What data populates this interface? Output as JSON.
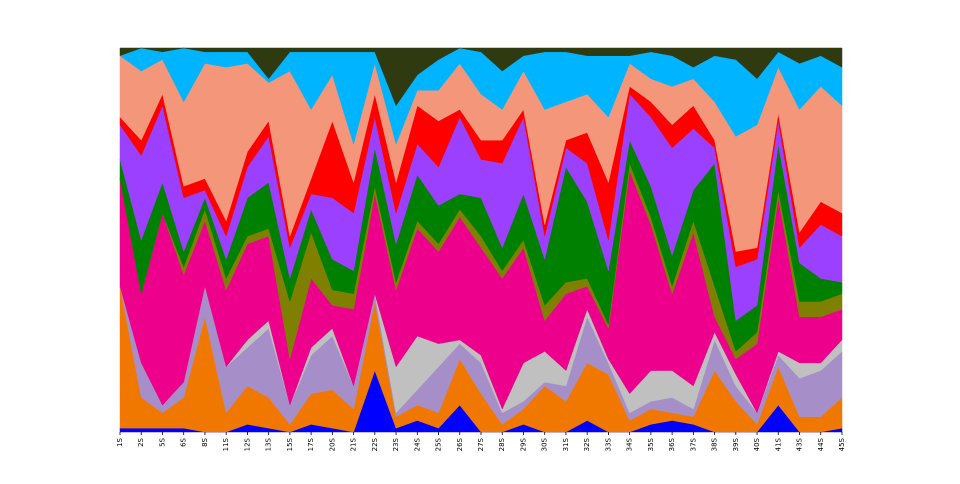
{
  "chart_data": {
    "type": "stacked_area",
    "categories": [
      "1S",
      "2S",
      "5S",
      "6S",
      "8S",
      "11S",
      "12S",
      "13S",
      "15S",
      "17S",
      "20S",
      "21S",
      "22S",
      "23S",
      "24S",
      "25S",
      "26S",
      "27S",
      "28S",
      "29S",
      "30S",
      "31S",
      "32S",
      "33S",
      "34S",
      "35S",
      "36S",
      "37S",
      "38S",
      "39S",
      "40S",
      "41S",
      "43S",
      "44S",
      "45S"
    ],
    "ylim": [
      0,
      100
    ],
    "series": [
      {
        "color": "#0000ff",
        "values": [
          1,
          1,
          1,
          1,
          0,
          0,
          2,
          1,
          0,
          2,
          1,
          0,
          16,
          1,
          3,
          1,
          7,
          0,
          0,
          2,
          0,
          0,
          3,
          0,
          0,
          2,
          3,
          2,
          0,
          0,
          0,
          7,
          0,
          0,
          1
        ]
      },
      {
        "color": "#f07800",
        "values": [
          37,
          8,
          4,
          8,
          30,
          5,
          10,
          8,
          2,
          8,
          10,
          6,
          18,
          3,
          4,
          4,
          12,
          10,
          2,
          4,
          12,
          8,
          15,
          15,
          3,
          4,
          2,
          2,
          16,
          8,
          2,
          10,
          4,
          4,
          8
        ]
      },
      {
        "color": "#a68fc8",
        "values": [
          0,
          9,
          2,
          4,
          8,
          12,
          10,
          18,
          5,
          10,
          14,
          6,
          2,
          1,
          4,
          12,
          4,
          8,
          3,
          2,
          1,
          4,
          12,
          3,
          2,
          2,
          4,
          2,
          8,
          4,
          3,
          3,
          10,
          12,
          12
        ]
      },
      {
        "color": "#c0c0c0",
        "values": [
          0,
          0,
          0,
          0,
          0,
          0,
          2,
          2,
          0,
          2,
          2,
          0,
          0,
          12,
          14,
          6,
          1,
          2,
          1,
          10,
          8,
          4,
          2,
          1,
          5,
          8,
          7,
          6,
          2,
          3,
          0,
          1,
          4,
          2,
          3
        ]
      },
      {
        "color": "#ec008c",
        "values": [
          28,
          18,
          50,
          28,
          17,
          20,
          25,
          22,
          12,
          18,
          6,
          20,
          26,
          20,
          28,
          24,
          32,
          28,
          34,
          30,
          8,
          20,
          6,
          8,
          58,
          38,
          20,
          40,
          4,
          4,
          18,
          40,
          12,
          12,
          8
        ]
      },
      {
        "color": "#808000",
        "values": [
          0,
          0,
          0,
          2,
          3,
          3,
          2,
          2,
          15,
          12,
          4,
          4,
          2,
          2,
          2,
          2,
          2,
          3,
          2,
          2,
          4,
          3,
          2,
          1,
          2,
          2,
          2,
          3,
          8,
          2,
          3,
          2,
          4,
          4,
          4
        ]
      },
      {
        "color": "#008000",
        "values": [
          5,
          14,
          8,
          4,
          3,
          5,
          10,
          12,
          6,
          6,
          8,
          6,
          10,
          10,
          12,
          10,
          4,
          10,
          6,
          12,
          12,
          30,
          20,
          14,
          6,
          8,
          8,
          8,
          32,
          8,
          7,
          12,
          10,
          6,
          3
        ]
      },
      {
        "color": "#9b40ff",
        "values": [
          9,
          22,
          20,
          14,
          2,
          6,
          8,
          12,
          8,
          4,
          16,
          15,
          8,
          8,
          8,
          10,
          20,
          10,
          22,
          20,
          6,
          5,
          10,
          8,
          12,
          18,
          28,
          16,
          4,
          14,
          12,
          6,
          4,
          14,
          12
        ]
      },
      {
        "color": "#ff0000",
        "values": [
          2,
          4,
          3,
          3,
          3,
          4,
          4,
          4,
          3,
          4,
          20,
          8,
          6,
          8,
          10,
          12,
          2,
          5,
          6,
          2,
          3,
          2,
          8,
          15,
          2,
          4,
          6,
          6,
          2,
          4,
          3,
          2,
          4,
          6,
          6
        ]
      },
      {
        "color": "#f4967a",
        "values": [
          16,
          18,
          9,
          22,
          30,
          40,
          23,
          10,
          43,
          18,
          12,
          10,
          8,
          10,
          4,
          8,
          12,
          12,
          8,
          10,
          30,
          10,
          10,
          17,
          6,
          6,
          10,
          7,
          10,
          30,
          32,
          12,
          32,
          30,
          28
        ]
      },
      {
        "color": "#00b4ff",
        "values": [
          0,
          6,
          2,
          14,
          3,
          4,
          3,
          1,
          5,
          15,
          6,
          24,
          3,
          10,
          4,
          8,
          4,
          11,
          10,
          4,
          15,
          13,
          10,
          16,
          2,
          7,
          8,
          3,
          12,
          20,
          12,
          4,
          12,
          8,
          10
        ]
      },
      {
        "color": "#2f3a10",
        "values": [
          2,
          0,
          1,
          0,
          1,
          1,
          1,
          8,
          1,
          1,
          1,
          1,
          1,
          15,
          7,
          3,
          0,
          1,
          6,
          2,
          1,
          1,
          2,
          2,
          2,
          1,
          2,
          5,
          2,
          3,
          8,
          1,
          4,
          2,
          5
        ]
      }
    ]
  }
}
